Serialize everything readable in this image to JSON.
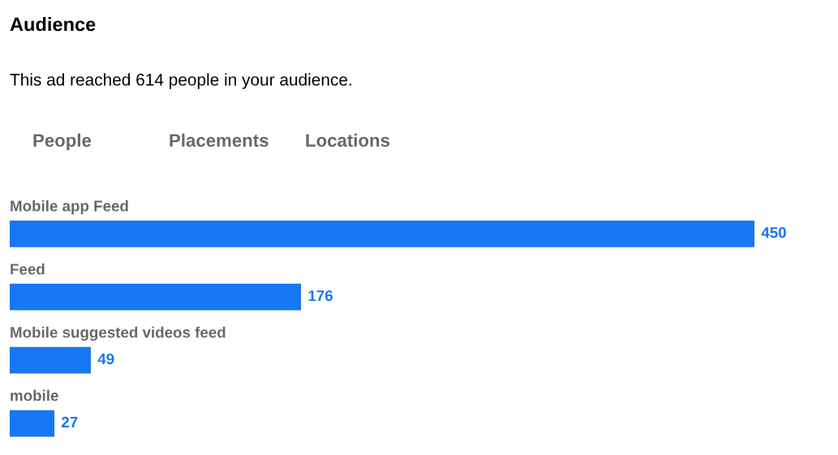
{
  "chart_data": {
    "type": "bar",
    "orientation": "horizontal",
    "title": "Audience",
    "subtitle": "This ad reached 614 people in your audience.",
    "annotations": [
      "People",
      "Placements",
      "Locations"
    ],
    "categories": [
      "Mobile app Feed",
      "Feed",
      "Mobile suggested videos feed",
      "mobile"
    ],
    "values": [
      450,
      176,
      49,
      27
    ],
    "color": "#1877f2",
    "data_labels": true,
    "relative": false,
    "tick_labels": false,
    "grid": false
  }
}
